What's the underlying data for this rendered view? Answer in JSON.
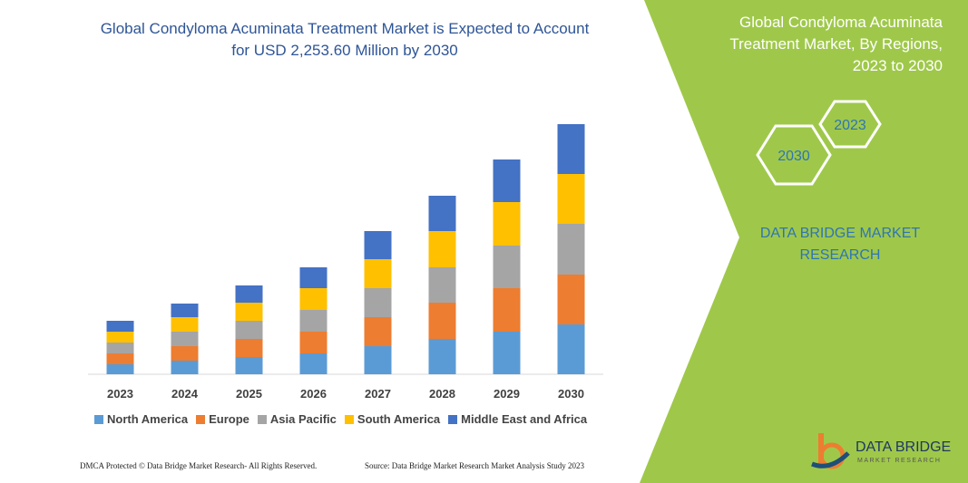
{
  "chart_data": {
    "type": "stacked_bar",
    "title": "Global Condyloma Acuminata Treatment Market is Expected to Account for USD 2,253.60 Million by 2030",
    "categories": [
      "2023",
      "2024",
      "2025",
      "2026",
      "2027",
      "2028",
      "2029",
      "2030"
    ],
    "series": [
      {
        "name": "North America",
        "color": "#5b9bd5",
        "values": [
          11,
          15,
          19,
          23,
          31,
          39,
          47,
          55
        ]
      },
      {
        "name": "Europe",
        "color": "#ed7d31",
        "values": [
          12,
          16,
          20,
          24,
          32,
          40,
          48,
          55
        ]
      },
      {
        "name": "Asia Pacific",
        "color": "#a5a5a5",
        "values": [
          12,
          16,
          20,
          24,
          32,
          39,
          47,
          56
        ]
      },
      {
        "name": "South America",
        "color": "#ffc000",
        "values": [
          12,
          16,
          20,
          24,
          32,
          40,
          48,
          55
        ]
      },
      {
        "name": "Middle East and Africa",
        "color": "#4472c4",
        "values": [
          12,
          15,
          19,
          23,
          31,
          39,
          47,
          55
        ]
      }
    ]
  },
  "panel": {
    "title": "Global Condyloma Acuminata Treatment Market, By Regions, 2023 to 2030",
    "hex_start": "2023",
    "hex_end": "2030",
    "brand": "DATA BRIDGE MARKET RESEARCH"
  },
  "logo": {
    "name": "DATA BRIDGE",
    "tagline": "MARKET RESEARCH"
  },
  "footer": {
    "left": "DMCA Protected © Data Bridge Market Research- All Rights Reserved.",
    "right": "Source: Data Bridge Market Research Market Analysis Study 2023"
  }
}
